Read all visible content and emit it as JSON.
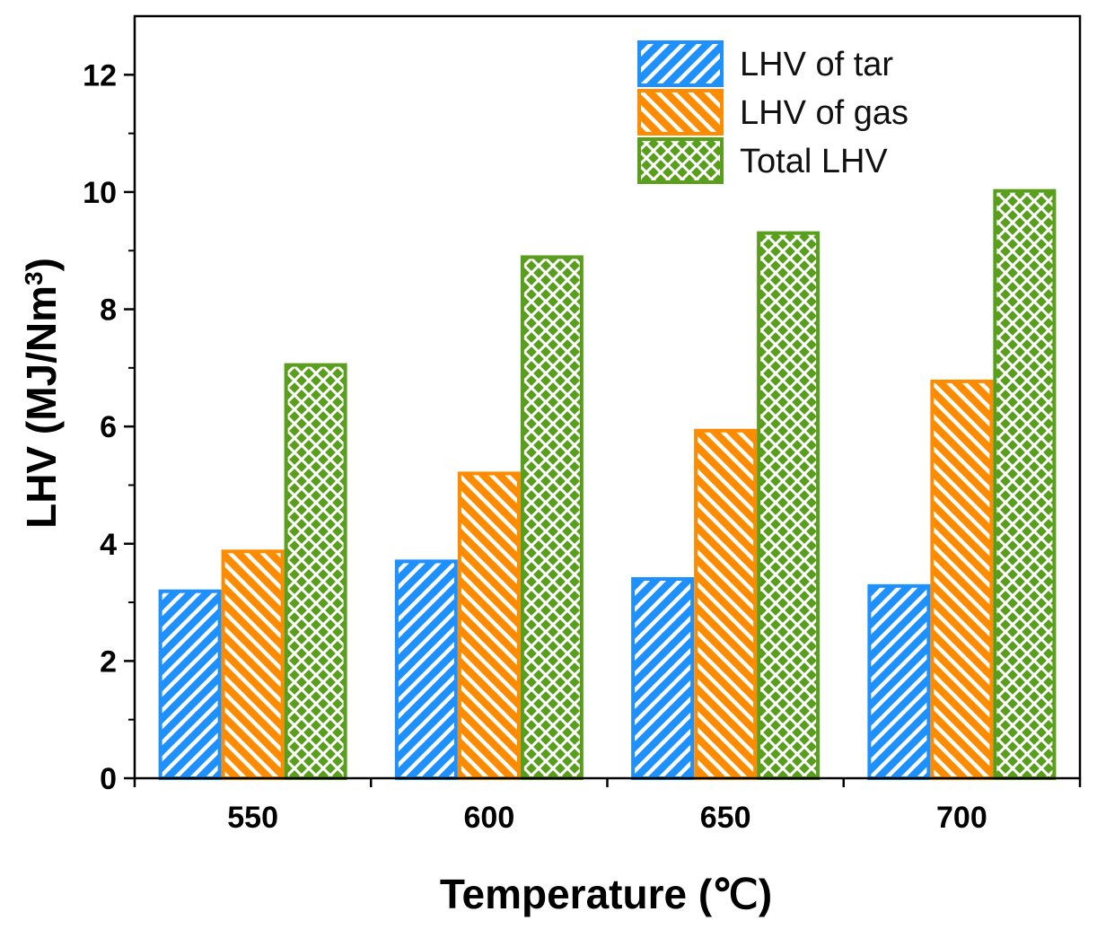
{
  "chart_data": {
    "type": "bar",
    "title": "",
    "xlabel": "Temperature (℃)",
    "ylabel_main": "LHV (MJ/Nm",
    "ylabel_sup": "3",
    "ylabel_close": ")",
    "categories": [
      "550",
      "600",
      "650",
      "700"
    ],
    "ylim": [
      0,
      13
    ],
    "yticks": [
      0,
      2,
      4,
      6,
      8,
      10,
      12
    ],
    "ytick_labels": [
      "0",
      "2",
      "4",
      "6",
      "8",
      "10",
      "12"
    ],
    "grid": false,
    "legend_position": "top-right",
    "series": [
      {
        "name": "LHV of tar",
        "values": [
          3.22,
          3.73,
          3.43,
          3.31
        ],
        "color": "#1e90ff",
        "pattern": "diagonal-right"
      },
      {
        "name": "LHV of gas",
        "values": [
          3.9,
          5.23,
          5.96,
          6.8
        ],
        "color": "#ff8c00",
        "pattern": "diagonal-left"
      },
      {
        "name": "Total LHV",
        "values": [
          7.08,
          8.92,
          9.33,
          10.05
        ],
        "color": "#5a9e1e",
        "pattern": "crosshatch"
      }
    ]
  }
}
